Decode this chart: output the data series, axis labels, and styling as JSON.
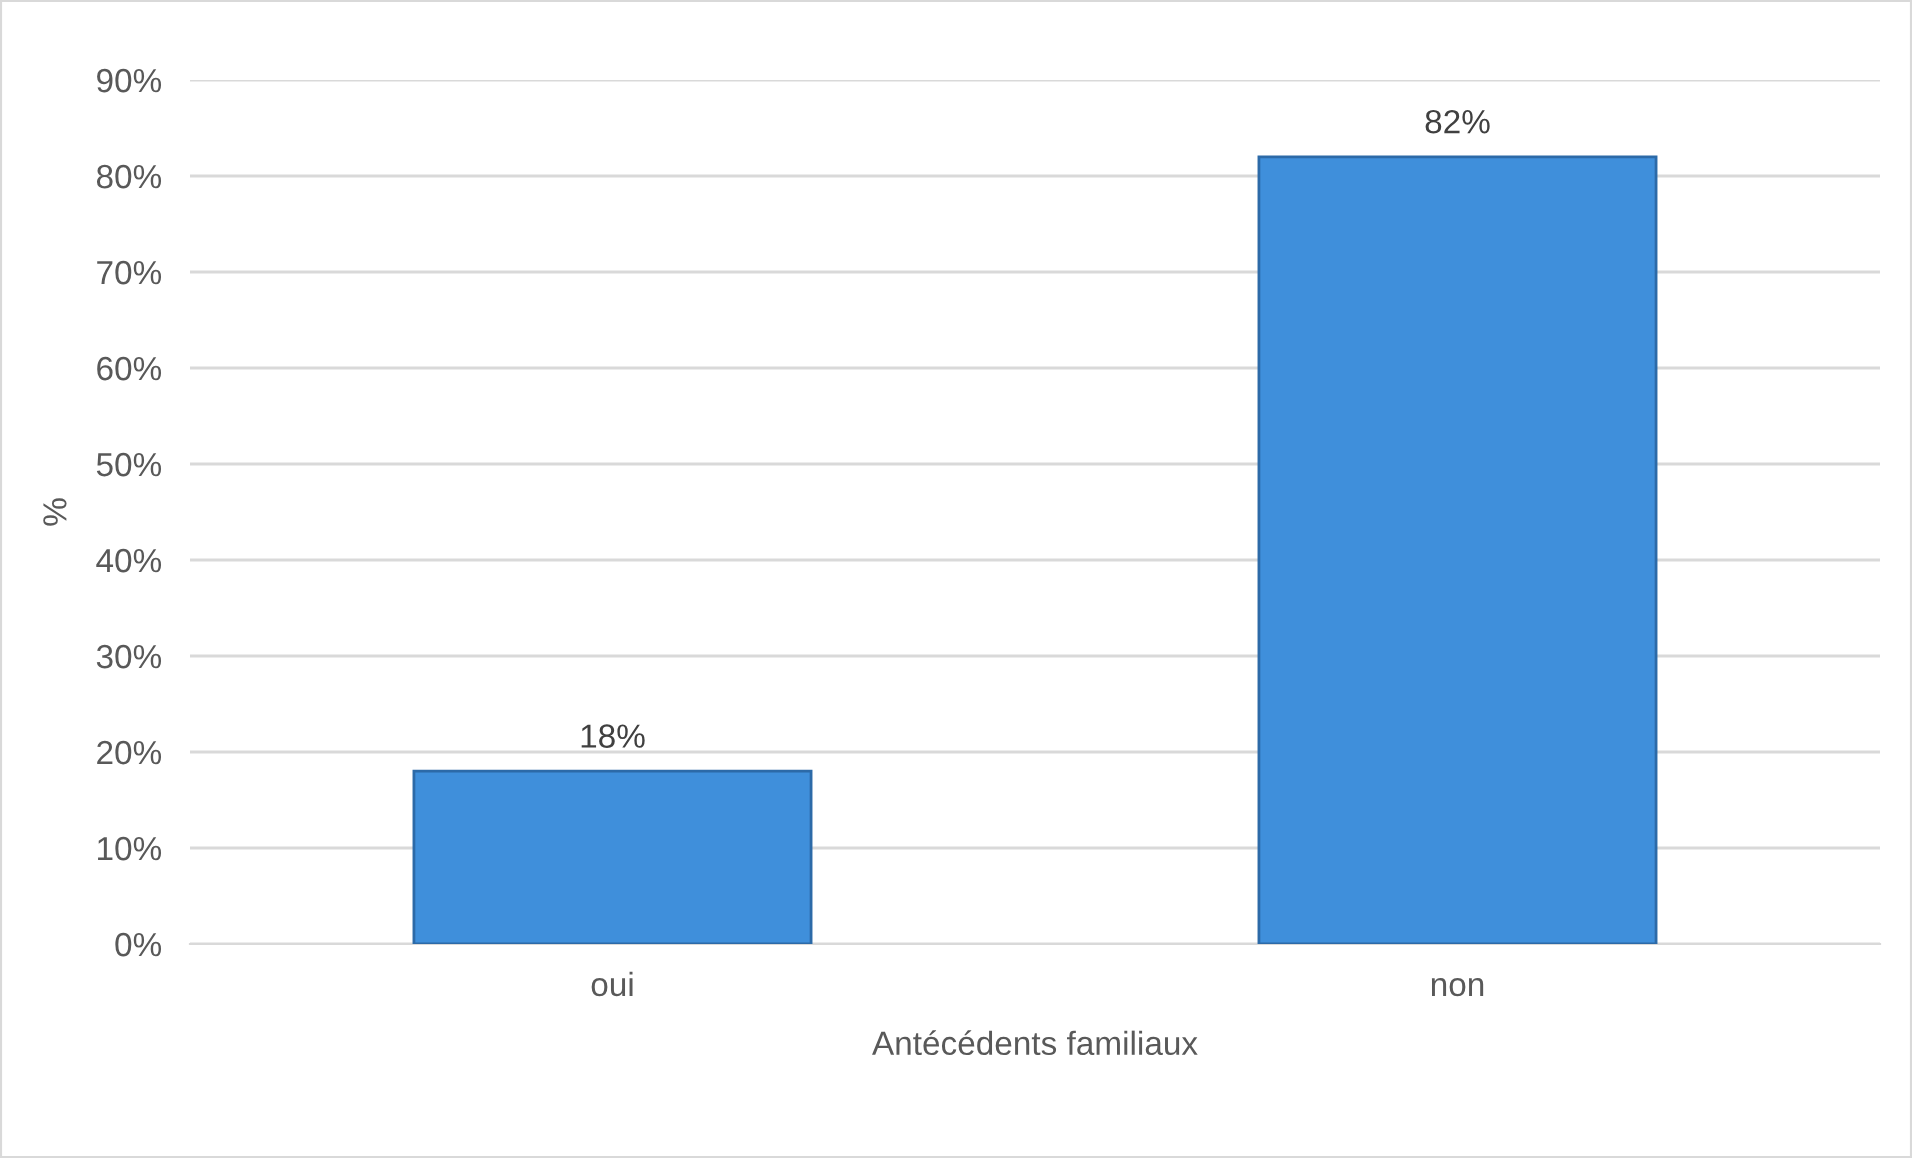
{
  "chart_data": {
    "type": "bar",
    "xlabel": "Antécédents familiaux",
    "ylabel": "%",
    "categories": [
      "oui",
      "non"
    ],
    "series": [
      {
        "color": "#3f8fdb",
        "values": [
          18,
          82
        ],
        "value_labels": [
          "18%",
          "82%"
        ]
      }
    ],
    "ylim": [
      0,
      90
    ],
    "yticks": [
      {
        "value": 0,
        "label": "0%"
      },
      {
        "value": 10,
        "label": "10%"
      },
      {
        "value": 20,
        "label": "20%"
      },
      {
        "value": 30,
        "label": "30%"
      },
      {
        "value": 40,
        "label": "40%"
      },
      {
        "value": 50,
        "label": "50%"
      },
      {
        "value": 60,
        "label": "60%"
      },
      {
        "value": 70,
        "label": "70%"
      },
      {
        "value": 80,
        "label": "80%"
      },
      {
        "value": 90,
        "label": "90%"
      }
    ],
    "grid": "y",
    "legend": false
  }
}
